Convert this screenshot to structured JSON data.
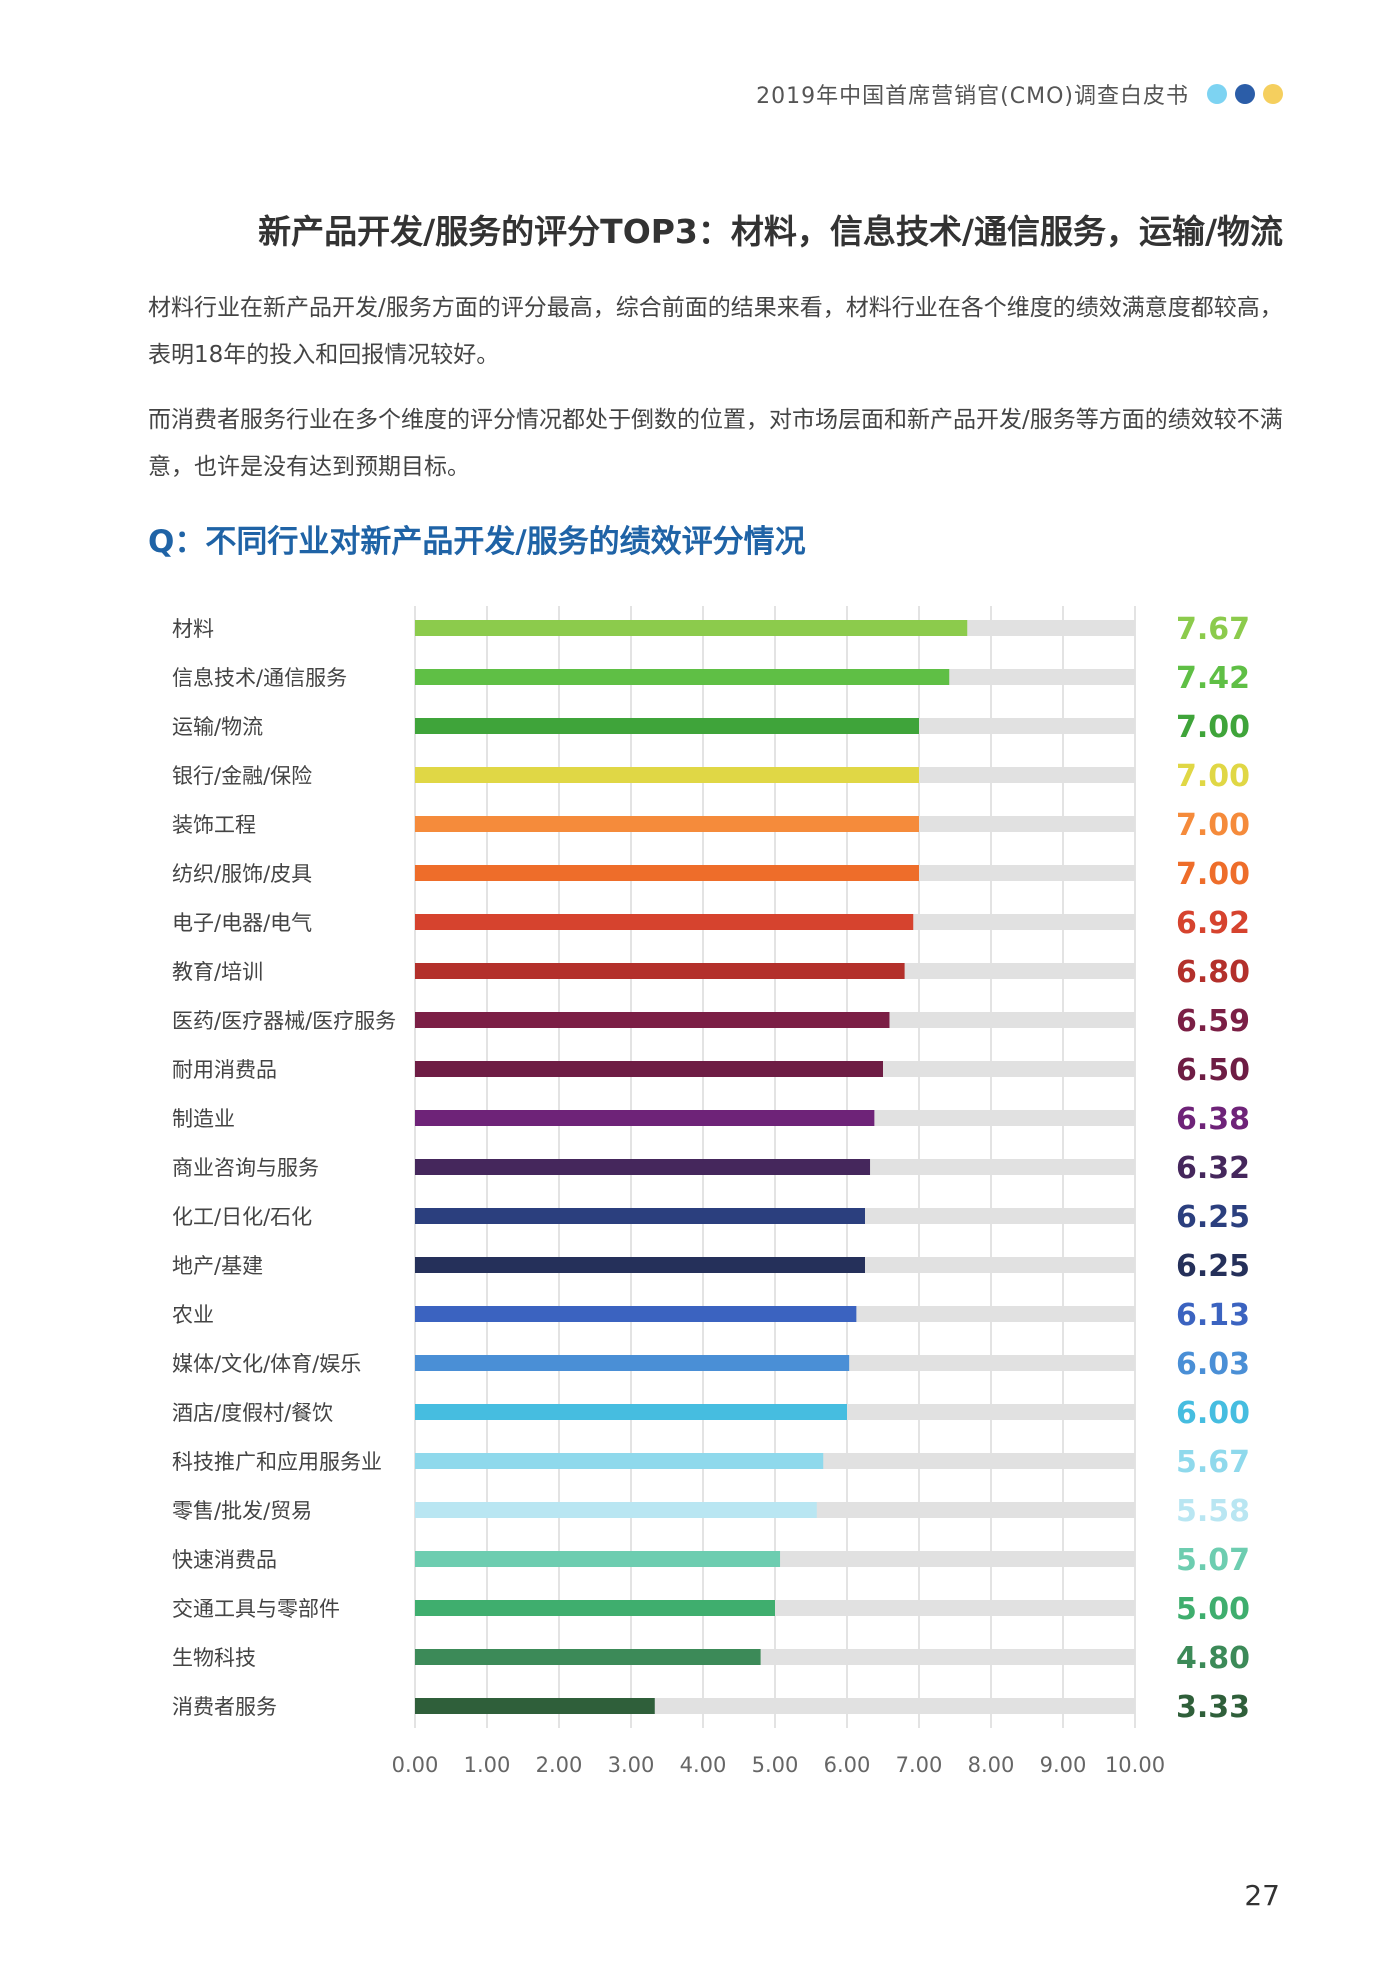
{
  "header": {
    "title": "2019年中国首席营销官(CMO)调查白皮书",
    "dots": [
      "#7dd3f2",
      "#2b5da8",
      "#f5cf5e"
    ]
  },
  "main_title": "新产品开发/服务的评分TOP3：材料，信息技术/通信服务，运输/物流",
  "paragraphs": [
    "材料行业在新产品开发/服务方面的评分最高，综合前面的结果来看，材料行业在各个维度的绩效满意度都较高，表明18年的投入和回报情况较好。",
    "而消费者服务行业在多个维度的评分情况都处于倒数的位置，对市场层面和新产品开发/服务等方面的绩效较不满意，也许是没有达到预期目标。"
  ],
  "question": "Q：不同行业对新产品开发/服务的绩效评分情况",
  "page_number": "27",
  "chart_data": {
    "type": "bar",
    "orientation": "horizontal",
    "title": "Q：不同行业对新产品开发/服务的绩效评分情况",
    "xlim": [
      0,
      10
    ],
    "x_ticks": [
      "0.00",
      "1.00",
      "2.00",
      "3.00",
      "4.00",
      "5.00",
      "6.00",
      "7.00",
      "8.00",
      "9.00",
      "10.00"
    ],
    "grid": true,
    "track_color": "#e1e1e1",
    "categories": [
      "材料",
      "信息技术/通信服务",
      "运输/物流",
      "银行/金融/保险",
      "装饰工程",
      "纺织/服饰/皮具",
      "电子/电器/电气",
      "教育/培训",
      "医药/医疗器械/医疗服务",
      "耐用消费品",
      "制造业",
      "商业咨询与服务",
      "化工/日化/石化",
      "地产/基建",
      "农业",
      "媒体/文化/体育/娱乐",
      "酒店/度假村/餐饮",
      "科技推广和应用服务业",
      "零售/批发/贸易",
      "快速消费品",
      "交通工具与零部件",
      "生物科技",
      "消费者服务"
    ],
    "values": [
      7.67,
      7.42,
      7.0,
      7.0,
      7.0,
      7.0,
      6.92,
      6.8,
      6.59,
      6.5,
      6.38,
      6.32,
      6.25,
      6.25,
      6.13,
      6.03,
      6.0,
      5.67,
      5.58,
      5.07,
      5.0,
      4.8,
      3.33
    ],
    "labels": [
      "7.67",
      "7.42",
      "7.00",
      "7.00",
      "7.00",
      "7.00",
      "6.92",
      "6.80",
      "6.59",
      "6.50",
      "6.38",
      "6.32",
      "6.25",
      "6.25",
      "6.13",
      "6.03",
      "6.00",
      "5.67",
      "5.58",
      "5.07",
      "5.00",
      "4.80",
      "3.33"
    ],
    "colors": [
      "#8ccb4c",
      "#5fbf45",
      "#3fa43a",
      "#e0d745",
      "#f58b3b",
      "#ee6d2a",
      "#d6432e",
      "#b3302b",
      "#7b1f45",
      "#6e1d44",
      "#6e2378",
      "#45275c",
      "#2b3f7e",
      "#25305a",
      "#3b63c0",
      "#4a8fd6",
      "#46bde0",
      "#8fd9ec",
      "#b9e6f2",
      "#6dcdb0",
      "#3fae6e",
      "#3c8a58",
      "#2f5f3a"
    ],
    "label_colors": [
      "#8ccb4c",
      "#5fbf45",
      "#3fa43a",
      "#e0d745",
      "#f58b3b",
      "#ee6d2a",
      "#d6432e",
      "#b3302b",
      "#7b1f45",
      "#6e1d44",
      "#6e2378",
      "#45275c",
      "#2b3f7e",
      "#25305a",
      "#3b63c0",
      "#4a8fd6",
      "#46bde0",
      "#8fd9ec",
      "#b9e6f2",
      "#6dcdb0",
      "#3fae6e",
      "#3c8a58",
      "#2f5f3a"
    ]
  }
}
